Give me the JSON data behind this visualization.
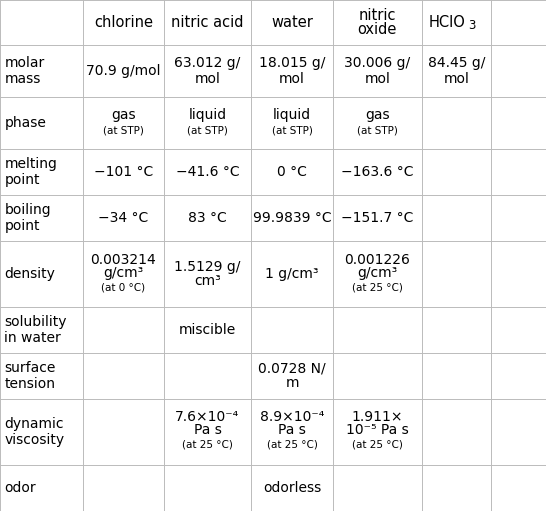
{
  "col_headers": [
    "",
    "chlorine",
    "nitric acid",
    "water",
    "nitric\noxide",
    "HClO3"
  ],
  "row_headers": [
    "molar\nmass",
    "phase",
    "melting\npoint",
    "boiling\npoint",
    "density",
    "solubility\nin water",
    "surface\ntension",
    "dynamic\nviscosity",
    "odor"
  ],
  "bg_color": "#ffffff",
  "line_color": "#bbbbbb",
  "text_color": "#000000",
  "header_fontsize": 10.5,
  "cell_fontsize": 10,
  "small_fontsize": 7.5
}
